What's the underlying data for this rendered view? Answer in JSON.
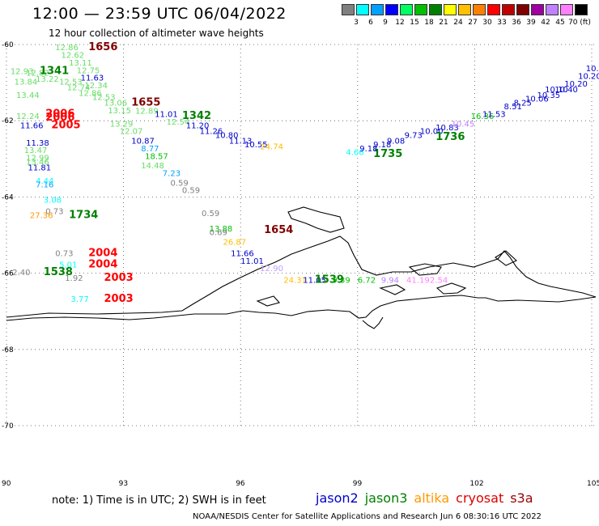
{
  "header": {
    "title": "12:00 — 23:59 UTC 06/04/2022",
    "subtitle": "12 hour collection of altimeter wave heights"
  },
  "color_scale": {
    "labels": [
      "3",
      "6",
      "9",
      "12",
      "15",
      "18",
      "21",
      "24",
      "27",
      "30",
      "33",
      "36",
      "39",
      "42",
      "45",
      "70 (ft)"
    ],
    "colors": [
      "#808080",
      "#00ffff",
      "#00a0ff",
      "#0000ff",
      "#00ff60",
      "#00c000",
      "#008000",
      "#ffff00",
      "#ffc000",
      "#ff8000",
      "#ff0000",
      "#c00000",
      "#800000",
      "#a000a0",
      "#c080ff",
      "#ff80ff",
      "#000000"
    ]
  },
  "axes": {
    "lat_labels": [
      "-60",
      "-62",
      "-64",
      "-66",
      "-68",
      "-70"
    ],
    "lon_labels": [
      "90",
      "93",
      "96",
      "99",
      "102",
      "105"
    ]
  },
  "footer": {
    "note": "note: 1) Time is in UTC; 2) SWH is in feet",
    "credits": "NOAA/NESDIS Center for Satellite Applications and Research   Jun  6 08:30:16 UTC 2022"
  },
  "legend": [
    {
      "name": "jason2",
      "color": "#0000cc"
    },
    {
      "name": "jason3",
      "color": "#008000"
    },
    {
      "name": "altika",
      "color": "#ff9900"
    },
    {
      "name": "cryosat",
      "color": "#dd0000"
    },
    {
      "name": "s3a",
      "color": "#990000"
    }
  ],
  "observations": [
    {
      "text": "1656",
      "lon": 92.1,
      "lat": -60.15,
      "color": "#800000",
      "bold": true
    },
    {
      "text": "12.86",
      "lon": 91.25,
      "lat": -60.15,
      "color": "#66dd66"
    },
    {
      "text": "12.62",
      "lon": 91.4,
      "lat": -60.35,
      "color": "#66dd66"
    },
    {
      "text": "13.11",
      "lon": 91.6,
      "lat": -60.55,
      "color": "#66dd66"
    },
    {
      "text": "12.75",
      "lon": 91.8,
      "lat": -60.75,
      "color": "#66dd66"
    },
    {
      "text": "11.63",
      "lon": 91.9,
      "lat": -60.95,
      "color": "#0000cc"
    },
    {
      "text": "12.93",
      "lon": 90.1,
      "lat": -60.78,
      "color": "#66dd66"
    },
    {
      "text": "12.82",
      "lon": 90.5,
      "lat": -60.82,
      "color": "#66dd66"
    },
    {
      "text": "1341",
      "lon": 90.85,
      "lat": -60.78,
      "color": "#008000",
      "bold": true
    },
    {
      "text": "13.84",
      "lon": 90.2,
      "lat": -61.05,
      "color": "#66dd66"
    },
    {
      "text": "13.22",
      "lon": 90.75,
      "lat": -60.98,
      "color": "#66dd66"
    },
    {
      "text": "12.53",
      "lon": 91.35,
      "lat": -61.05,
      "color": "#66dd66"
    },
    {
      "text": "12.74",
      "lon": 91.55,
      "lat": -61.2,
      "color": "#66dd66"
    },
    {
      "text": "12.34",
      "lon": 92.0,
      "lat": -61.15,
      "color": "#66dd66"
    },
    {
      "text": "13.44",
      "lon": 90.25,
      "lat": -61.4,
      "color": "#66dd66"
    },
    {
      "text": "12.86",
      "lon": 91.85,
      "lat": -61.35,
      "color": "#66dd66"
    },
    {
      "text": "12.53",
      "lon": 92.2,
      "lat": -61.45,
      "color": "#66dd66"
    },
    {
      "text": "13.06",
      "lon": 92.5,
      "lat": -61.6,
      "color": "#66dd66"
    },
    {
      "text": "1655",
      "lon": 93.2,
      "lat": -61.6,
      "color": "#800000",
      "bold": true
    },
    {
      "text": "13.15",
      "lon": 92.6,
      "lat": -61.8,
      "color": "#66dd66"
    },
    {
      "text": "12.89",
      "lon": 93.3,
      "lat": -61.82,
      "color": "#66dd66"
    },
    {
      "text": "11.01",
      "lon": 93.8,
      "lat": -61.9,
      "color": "#0000cc"
    },
    {
      "text": "1342",
      "lon": 94.5,
      "lat": -61.95,
      "color": "#008000",
      "bold": true
    },
    {
      "text": "12.54",
      "lon": 94.1,
      "lat": -62.1,
      "color": "#66dd66"
    },
    {
      "text": "11.20",
      "lon": 94.6,
      "lat": -62.2,
      "color": "#0000cc"
    },
    {
      "text": "11.26",
      "lon": 94.95,
      "lat": -62.35,
      "color": "#0000cc"
    },
    {
      "text": "10.80",
      "lon": 95.35,
      "lat": -62.45,
      "color": "#0000cc"
    },
    {
      "text": "11.13",
      "lon": 95.7,
      "lat": -62.6,
      "color": "#0000cc"
    },
    {
      "text": "10.55",
      "lon": 96.1,
      "lat": -62.7,
      "color": "#0000cc"
    },
    {
      "text": "24.74",
      "lon": 96.5,
      "lat": -62.75,
      "color": "#ffbb00"
    },
    {
      "text": "12.24",
      "lon": 90.25,
      "lat": -61.95,
      "color": "#66dd66"
    },
    {
      "text": "2006",
      "lon": 91.0,
      "lat": -61.9,
      "color": "#ff0000",
      "bold": true
    },
    {
      "text": "2006",
      "lon": 91.0,
      "lat": -62.0,
      "color": "#ff0000",
      "bold": true
    },
    {
      "text": "11.66",
      "lon": 90.35,
      "lat": -62.2,
      "color": "#0000cc"
    },
    {
      "text": "2005",
      "lon": 91.15,
      "lat": -62.2,
      "color": "#ff0000",
      "bold": true
    },
    {
      "text": "13.29",
      "lon": 92.65,
      "lat": -62.15,
      "color": "#66dd66"
    },
    {
      "text": "12.07",
      "lon": 92.9,
      "lat": -62.35,
      "color": "#66dd66"
    },
    {
      "text": "10.87",
      "lon": 93.2,
      "lat": -62.6,
      "color": "#0000cc"
    },
    {
      "text": "8.77",
      "lon": 93.45,
      "lat": -62.8,
      "color": "#00a0ff"
    },
    {
      "text": "18.57",
      "lon": 93.55,
      "lat": -63.0,
      "color": "#00c000"
    },
    {
      "text": "14.48",
      "lon": 93.45,
      "lat": -63.25,
      "color": "#66dd66"
    },
    {
      "text": "7.23",
      "lon": 94.0,
      "lat": -63.45,
      "color": "#00a0ff"
    },
    {
      "text": "0.59",
      "lon": 94.2,
      "lat": -63.7,
      "color": "#808080"
    },
    {
      "text": "0.59",
      "lon": 94.5,
      "lat": -63.9,
      "color": "#808080"
    },
    {
      "text": "11.38",
      "lon": 90.5,
      "lat": -62.65,
      "color": "#0000cc"
    },
    {
      "text": "13.47",
      "lon": 90.45,
      "lat": -62.85,
      "color": "#66dd66"
    },
    {
      "text": "12.99",
      "lon": 90.5,
      "lat": -63.05,
      "color": "#66dd66"
    },
    {
      "text": "13.46",
      "lon": 90.5,
      "lat": -63.15,
      "color": "#66dd66"
    },
    {
      "text": "11.81",
      "lon": 90.55,
      "lat": -63.3,
      "color": "#0000cc"
    },
    {
      "text": "4.44",
      "lon": 90.75,
      "lat": -63.65,
      "color": "#00ffff"
    },
    {
      "text": "7.16",
      "lon": 90.75,
      "lat": -63.75,
      "color": "#00a0ff"
    },
    {
      "text": "3.08",
      "lon": 90.95,
      "lat": -64.15,
      "color": "#00ffff"
    },
    {
      "text": "0.73",
      "lon": 91.0,
      "lat": -64.45,
      "color": "#808080"
    },
    {
      "text": "27.36",
      "lon": 90.6,
      "lat": -64.55,
      "color": "#ff9900"
    },
    {
      "text": "1734",
      "lon": 91.6,
      "lat": -64.55,
      "color": "#008000",
      "bold": true
    },
    {
      "text": "0.59",
      "lon": 95.0,
      "lat": -64.5,
      "color": "#808080"
    },
    {
      "text": "13.88",
      "lon": 95.2,
      "lat": -64.9,
      "color": "#00c000"
    },
    {
      "text": "0.69",
      "lon": 95.2,
      "lat": -65.0,
      "color": "#808080"
    },
    {
      "text": "1654",
      "lon": 96.6,
      "lat": -64.95,
      "color": "#800000",
      "bold": true
    },
    {
      "text": "26.87",
      "lon": 95.55,
      "lat": -65.25,
      "color": "#ffbb00"
    },
    {
      "text": "11.66",
      "lon": 95.75,
      "lat": -65.55,
      "color": "#0000cc"
    },
    {
      "text": "11.01",
      "lon": 96.0,
      "lat": -65.75,
      "color": "#0000cc"
    },
    {
      "text": "12.90",
      "lon": 96.5,
      "lat": -65.95,
      "color": "#c0a0ff"
    },
    {
      "text": "0.73",
      "lon": 91.25,
      "lat": -65.55,
      "color": "#808080"
    },
    {
      "text": "2004",
      "lon": 92.1,
      "lat": -65.55,
      "color": "#ff0000",
      "bold": true
    },
    {
      "text": "5.01",
      "lon": 91.35,
      "lat": -65.85,
      "color": "#00ffff"
    },
    {
      "text": "2004",
      "lon": 92.1,
      "lat": -65.85,
      "color": "#ff0000",
      "bold": true
    },
    {
      "text": "2.40",
      "lon": 90.15,
      "lat": -66.05,
      "color": "#808080"
    },
    {
      "text": "1538",
      "lon": 90.95,
      "lat": -66.05,
      "color": "#008000",
      "bold": true
    },
    {
      "text": "1.92",
      "lon": 91.5,
      "lat": -66.2,
      "color": "#808080"
    },
    {
      "text": "2003",
      "lon": 92.5,
      "lat": -66.2,
      "color": "#ff0000",
      "bold": true
    },
    {
      "text": "3.77",
      "lon": 91.65,
      "lat": -66.75,
      "color": "#00ffff"
    },
    {
      "text": "2003",
      "lon": 92.5,
      "lat": -66.75,
      "color": "#ff0000",
      "bold": true
    },
    {
      "text": "24.31",
      "lon": 97.1,
      "lat": -66.25,
      "color": "#ffbb00"
    },
    {
      "text": "11.05",
      "lon": 97.6,
      "lat": -66.25,
      "color": "#0000cc"
    },
    {
      "text": "1539",
      "lon": 97.9,
      "lat": -66.25,
      "color": "#008000",
      "bold": true
    },
    {
      "text": "9.39",
      "lon": 98.35,
      "lat": -66.25,
      "color": "#00c000"
    },
    {
      "text": "6.72",
      "lon": 99.0,
      "lat": -66.25,
      "color": "#00c000"
    },
    {
      "text": "9.94",
      "lon": 99.6,
      "lat": -66.25,
      "color": "#c080ff"
    },
    {
      "text": "41.19",
      "lon": 100.25,
      "lat": -66.25,
      "color": "#ff80ff"
    },
    {
      "text": "2.54",
      "lon": 100.85,
      "lat": -66.25,
      "color": "#ff80ff"
    },
    {
      "text": "4.66",
      "lon": 98.7,
      "lat": -62.9,
      "color": "#00ffff"
    },
    {
      "text": "1735",
      "lon": 99.4,
      "lat": -62.95,
      "color": "#008000",
      "bold": true
    },
    {
      "text": "9.18",
      "lon": 99.05,
      "lat": -62.8,
      "color": "#0000cc"
    },
    {
      "text": "9.18",
      "lon": 99.4,
      "lat": -62.7,
      "color": "#0000cc"
    },
    {
      "text": "9.08",
      "lon": 99.75,
      "lat": -62.6,
      "color": "#0000cc"
    },
    {
      "text": "9.73",
      "lon": 100.2,
      "lat": -62.45,
      "color": "#0000cc"
    },
    {
      "text": "10.00",
      "lon": 100.6,
      "lat": -62.35,
      "color": "#0000cc"
    },
    {
      "text": "10.83",
      "lon": 101.0,
      "lat": -62.25,
      "color": "#0000cc"
    },
    {
      "text": "1736",
      "lon": 101.0,
      "lat": -62.5,
      "color": "#008000",
      "bold": true
    },
    {
      "text": "10.45",
      "lon": 101.4,
      "lat": -62.15,
      "color": "#c080ff"
    },
    {
      "text": "16.36",
      "lon": 101.9,
      "lat": -61.95,
      "color": "#00c000"
    },
    {
      "text": "11.53",
      "lon": 102.2,
      "lat": -61.9,
      "color": "#0000cc"
    },
    {
      "text": "8.51",
      "lon": 102.75,
      "lat": -61.7,
      "color": "#0000cc"
    },
    {
      "text": "8.25",
      "lon": 103.0,
      "lat": -61.6,
      "color": "#0000cc"
    },
    {
      "text": "10.06",
      "lon": 103.3,
      "lat": -61.5,
      "color": "#0000cc"
    },
    {
      "text": "10.35",
      "lon": 103.6,
      "lat": -61.4,
      "color": "#0000cc"
    },
    {
      "text": "10.10",
      "lon": 103.8,
      "lat": -61.25,
      "color": "#0000cc"
    },
    {
      "text": "10.40",
      "lon": 104.05,
      "lat": -61.25,
      "color": "#0000cc"
    },
    {
      "text": "10.20",
      "lon": 104.3,
      "lat": -61.1,
      "color": "#0000cc"
    },
    {
      "text": "10.20",
      "lon": 104.65,
      "lat": -60.9,
      "color": "#0000cc"
    },
    {
      "text": "10.3",
      "lon": 104.85,
      "lat": -60.7,
      "color": "#0000cc"
    }
  ]
}
